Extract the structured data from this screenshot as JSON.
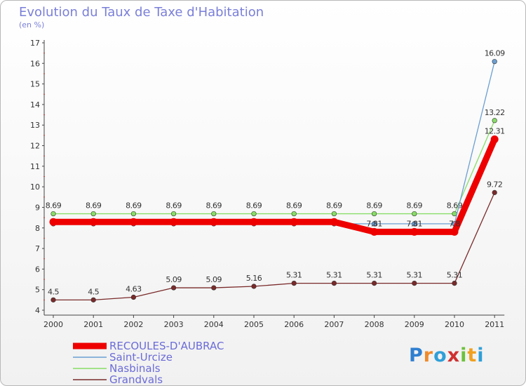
{
  "chart_data": {
    "type": "line",
    "title": "Evolution du Taux de Taxe d'Habitation",
    "subtitle": "(en %)",
    "x": [
      "2000",
      "2001",
      "2002",
      "2003",
      "2004",
      "2005",
      "2006",
      "2007",
      "2008",
      "2009",
      "2010",
      "2011"
    ],
    "ylim": [
      4,
      17
    ],
    "yticks": [
      "4",
      "5",
      "6",
      "7",
      "8",
      "9",
      "10",
      "11",
      "12",
      "13",
      "14",
      "15",
      "16",
      "17"
    ],
    "grid": false,
    "legend_position": "bottom-left",
    "series": [
      {
        "name": "Grandvals",
        "color": "#7a2a2a",
        "values": [
          4.5,
          4.5,
          4.63,
          5.09,
          5.09,
          5.16,
          5.31,
          5.31,
          5.31,
          5.31,
          5.31,
          9.72
        ],
        "labels": [
          "4.5",
          "4.5",
          "4.63",
          "5.09",
          "5.09",
          "5.16",
          "5.31",
          "5.31",
          "5.31",
          "5.31",
          "5.31",
          "9.72"
        ]
      },
      {
        "name": "Nasbinals",
        "color": "#88dd66",
        "values": [
          8.69,
          8.69,
          8.69,
          8.69,
          8.69,
          8.69,
          8.69,
          8.69,
          8.69,
          8.69,
          8.69,
          13.22
        ],
        "labels": [
          "8.69",
          "8.69",
          "8.69",
          "8.69",
          "8.69",
          "8.69",
          "8.69",
          "8.69",
          "8.69",
          "8.69",
          "8.69",
          "13.22"
        ]
      },
      {
        "name": "Saint-Urcize",
        "color": "#6b9fd3",
        "values": [
          8.2,
          8.2,
          8.2,
          8.2,
          8.2,
          8.2,
          8.2,
          8.2,
          8.2,
          8.2,
          8.2,
          16.09
        ],
        "labels": [
          "",
          "",
          "",
          "",
          "",
          "",
          "",
          "",
          "",
          "",
          "",
          "16.09"
        ]
      },
      {
        "name": "RECOULES-D'AUBRAC",
        "color": "#ee0000",
        "thick": true,
        "values": [
          8.29,
          8.29,
          8.29,
          8.29,
          8.29,
          8.29,
          8.29,
          8.29,
          7.81,
          7.81,
          7.81,
          12.31
        ],
        "labels": [
          "",
          "",
          "",
          "",
          "",
          "",
          "",
          "",
          "7.81",
          "7.81",
          "7.8",
          "12.31"
        ]
      }
    ],
    "legend": [
      "RECOULES-D'AUBRAC",
      "Saint-Urcize",
      "Nasbinals",
      "Grandvals"
    ]
  },
  "brand": {
    "letters": [
      "P",
      "r",
      "o",
      "x",
      "i",
      "t",
      "i"
    ],
    "colors": [
      "#2f7fd0",
      "#f08a2a",
      "#2f9fd8",
      "#d03030",
      "#6cc23c",
      "#f0a020",
      "#2f9fd8"
    ]
  }
}
